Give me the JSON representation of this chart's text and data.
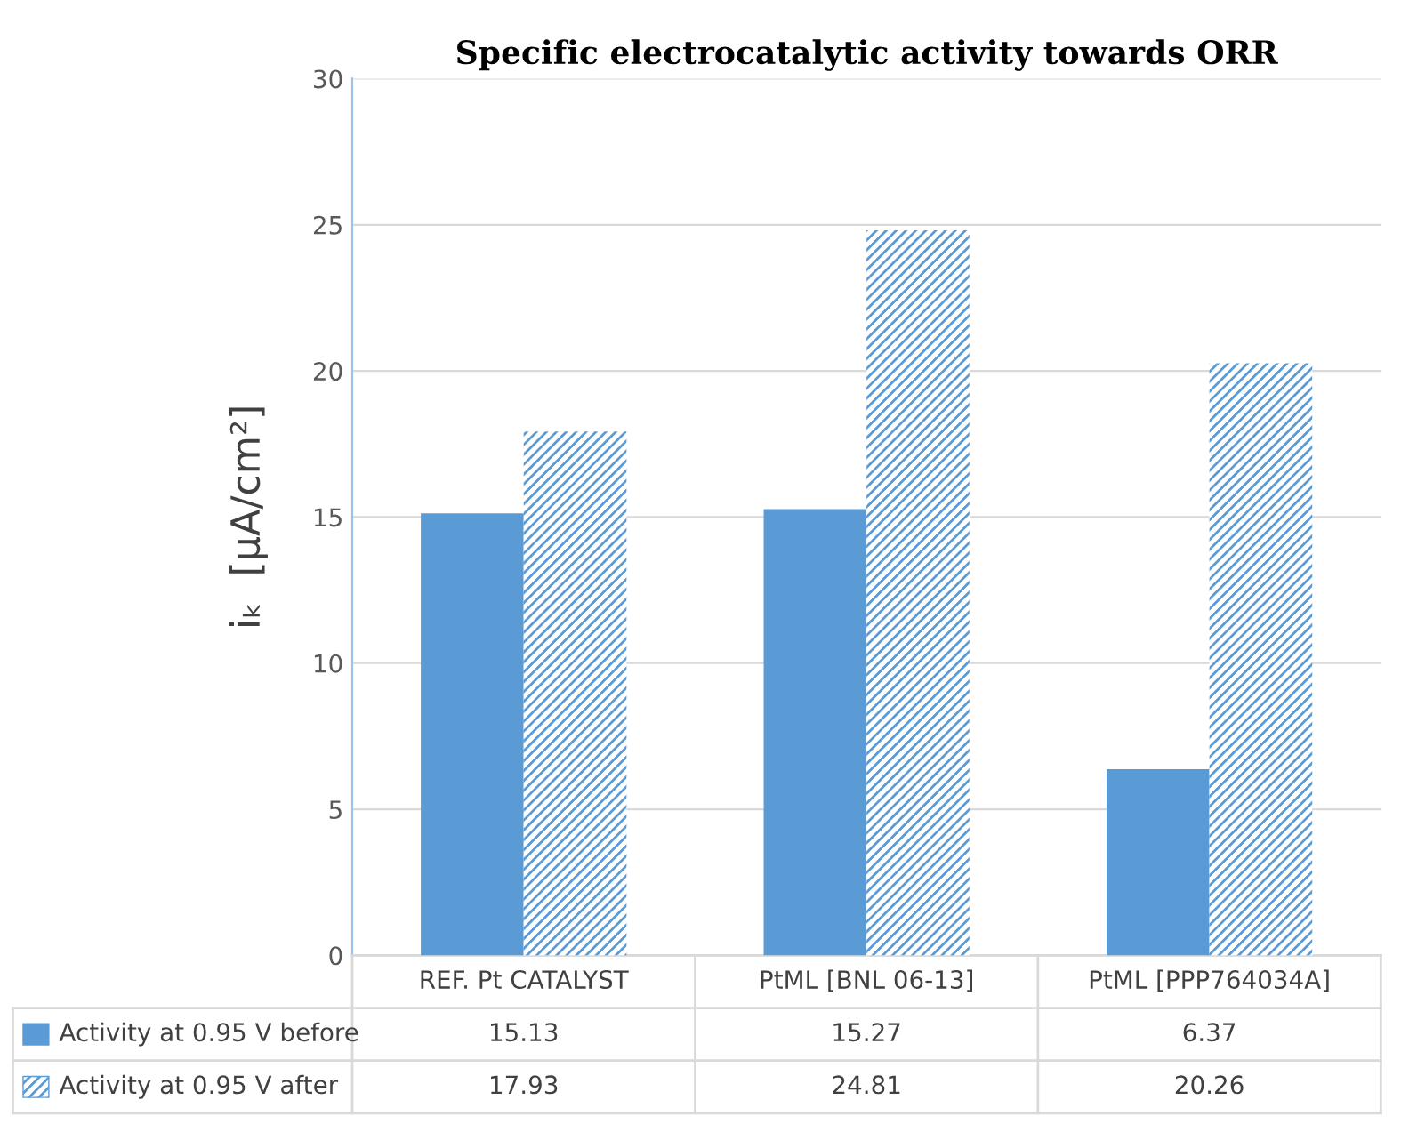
{
  "chart_data": {
    "type": "bar",
    "title": "Specific electrocatalytic activity towards ORR",
    "ylabel": "iₖ  [μA/cm²]",
    "categories": [
      "REF. Pt CATALYST",
      "PtML [BNL 06-13]",
      "PtML [PPP764034A]"
    ],
    "series": [
      {
        "name": "Activity at 0.95 V before",
        "color": "#5b9bd5",
        "values": [
          15.13,
          15.27,
          6.37
        ]
      },
      {
        "name": "Activity at 0.95 V after",
        "color": "#5b9bd5",
        "values": [
          17.93,
          24.81,
          20.26
        ]
      }
    ],
    "ylim": [
      0,
      30
    ],
    "yticks": [
      0,
      5,
      10,
      15,
      20,
      25,
      30
    ],
    "grid": "y",
    "data_labels": true,
    "legend": "bottom left"
  }
}
